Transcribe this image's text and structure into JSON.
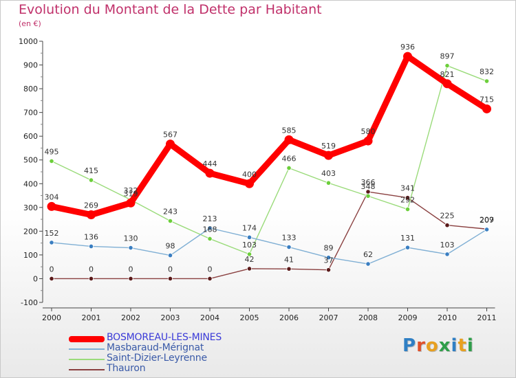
{
  "header": {
    "title": "Evolution du Montant de la Dette par Habitant",
    "subtitle": "(en €)"
  },
  "logo": {
    "text": "Proxiti",
    "letter_colors": [
      "#2f7fc4",
      "#e0502a",
      "#e8a020",
      "#2f9e4a",
      "#2f7fc4",
      "#e8a020",
      "#2f9e4a"
    ]
  },
  "chart_data": {
    "type": "line",
    "title": "Evolution du Montant de la Dette par Habitant",
    "subtitle": "(en €)",
    "xlabel": "",
    "ylabel": "",
    "x": [
      "2000",
      "2001",
      "2002",
      "2003",
      "2004",
      "2005",
      "2006",
      "2007",
      "2008",
      "2009",
      "2010",
      "2011"
    ],
    "ylim": [
      -100,
      1000
    ],
    "yticks": [
      -100,
      0,
      100,
      200,
      300,
      400,
      500,
      600,
      700,
      800,
      900,
      1000
    ],
    "grid": false,
    "legend_position": "bottom-left",
    "series": [
      {
        "name": "BOSMOREAU-LES-MINES",
        "color": "#ff0000",
        "values": [
          304,
          269,
          319,
          567,
          444,
          400,
          585,
          519,
          580,
          936,
          821,
          715
        ],
        "labels": [
          "304",
          "269",
          "319",
          "567",
          "444",
          "400",
          "585",
          "519",
          "580",
          "936",
          "821",
          "715"
        ]
      },
      {
        "name": "Masbaraud-Mérignat",
        "color": "#7fafd4",
        "marker": "#3a7ec1",
        "values": [
          152,
          136,
          130,
          98,
          213,
          174,
          133,
          89,
          62,
          131,
          103,
          207
        ],
        "labels": [
          "152",
          "136",
          "130",
          "98",
          "213",
          "174",
          "133",
          "89",
          "62",
          "131",
          "103",
          "207"
        ]
      },
      {
        "name": "Saint-Dizier-Leyrenne",
        "color": "#9adb7a",
        "marker": "#6ccf3a",
        "values": [
          495,
          415,
          332,
          243,
          168,
          103,
          466,
          403,
          348,
          292,
          897,
          832
        ],
        "labels": [
          "495",
          "415",
          "332",
          "243",
          "168",
          "103",
          "466",
          "403",
          "348",
          "292",
          "897",
          "832"
        ]
      },
      {
        "name": "Thauron",
        "color": "#8a4040",
        "marker": "#5a1a1a",
        "values": [
          0,
          0,
          0,
          0,
          0,
          42,
          41,
          37,
          366,
          341,
          225,
          209
        ],
        "labels": [
          "0",
          "0",
          "0",
          "0",
          "0",
          "42",
          "41",
          "37",
          "366",
          "341",
          "225",
          "209"
        ]
      }
    ]
  }
}
